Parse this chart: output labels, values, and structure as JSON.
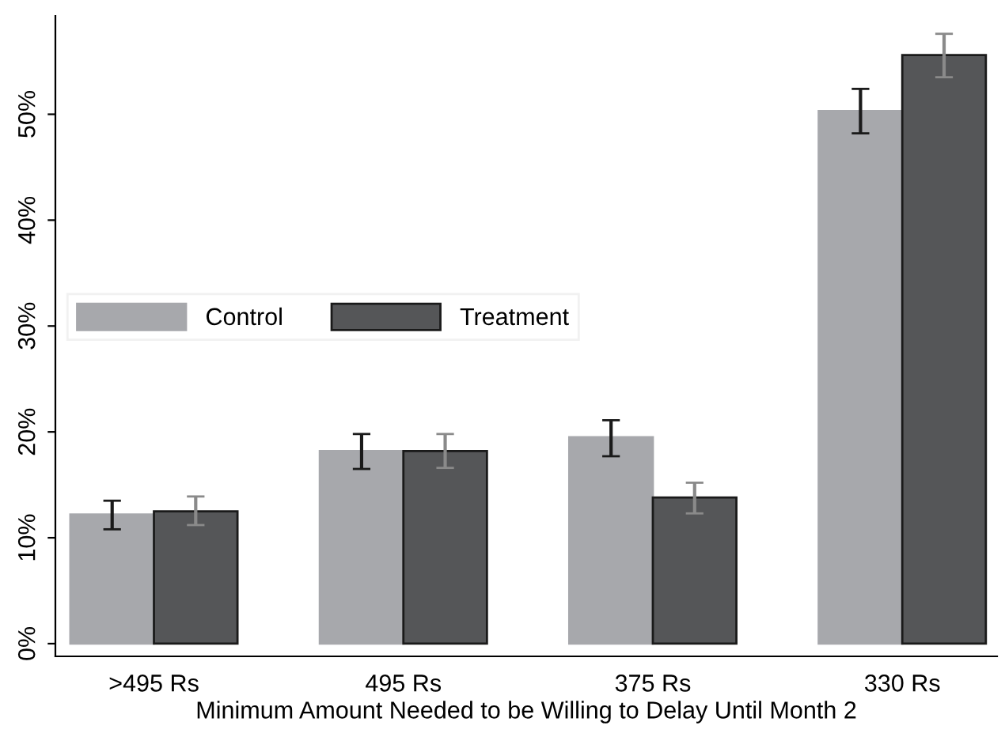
{
  "chart_data": {
    "type": "bar",
    "xlabel": "Minimum Amount Needed to be Willing to Delay Until Month 2",
    "categories": [
      ">495 Rs",
      "495 Rs",
      "375 Rs",
      "330 Rs"
    ],
    "series": [
      {
        "name": "Control",
        "color": "#a7a8ac",
        "values": [
          12.2,
          18.2,
          19.5,
          50.3
        ],
        "errors": [
          [
            10.8,
            13.5
          ],
          [
            16.5,
            19.8
          ],
          [
            17.7,
            21.1
          ],
          [
            48.2,
            52.4
          ]
        ]
      },
      {
        "name": "Treatment",
        "color": "#555658",
        "values": [
          12.5,
          18.2,
          13.8,
          55.6
        ],
        "errors": [
          [
            11.2,
            13.9
          ],
          [
            16.6,
            19.8
          ],
          [
            12.3,
            15.2
          ],
          [
            53.5,
            57.6
          ]
        ]
      }
    ],
    "ylim": [
      -1.2,
      59.3
    ],
    "yticks": [
      {
        "value": 0,
        "label": "0%"
      },
      {
        "value": 10,
        "label": "10%"
      },
      {
        "value": 20,
        "label": "20%"
      },
      {
        "value": 30,
        "label": "30%"
      },
      {
        "value": 40,
        "label": "40%"
      },
      {
        "value": 50,
        "label": "50%"
      }
    ],
    "grid": false,
    "legend": "left"
  }
}
